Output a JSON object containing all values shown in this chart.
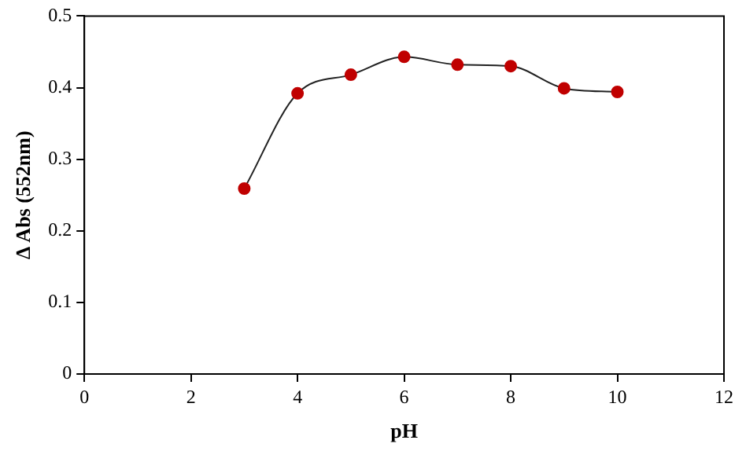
{
  "chart_data": {
    "type": "line",
    "xlabel": "pH",
    "ylabel": "Δ Abs (552nm)",
    "x": [
      3,
      4,
      5,
      6,
      7,
      8,
      9,
      10
    ],
    "series": [
      {
        "color": "#c00000",
        "values": [
          0.259,
          0.392,
          0.418,
          0.443,
          0.432,
          0.43,
          0.399,
          0.394
        ]
      }
    ],
    "xlim": [
      0,
      12
    ],
    "xticks": [
      0,
      2,
      4,
      6,
      8,
      10,
      12
    ],
    "ylim": [
      0,
      0.5
    ],
    "yticks": [
      0,
      0.1,
      0.2,
      0.3,
      0.4,
      0.5
    ],
    "grid": false,
    "legend": false,
    "marker": "circle",
    "line_style": "solid"
  }
}
